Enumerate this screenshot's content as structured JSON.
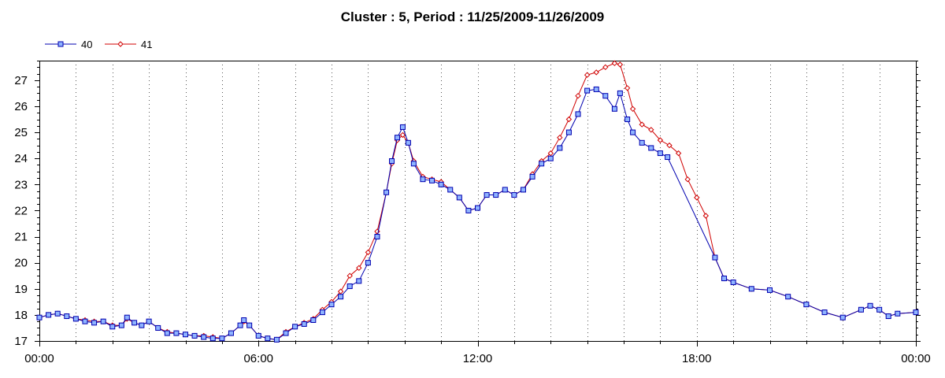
{
  "chart_data": {
    "type": "line",
    "title": "Cluster : 5, Period : 11/25/2009-11/26/2009",
    "xlabel": "",
    "ylabel": "",
    "x_unit": "hours since 00:00",
    "xlim": [
      0,
      24
    ],
    "ylim": [
      17,
      27.75
    ],
    "x_ticks": [
      "00:00",
      "06:00",
      "12:00",
      "18:00",
      "00:00"
    ],
    "y_ticks": [
      "17",
      "18",
      "19",
      "20",
      "21",
      "22",
      "23",
      "24",
      "25",
      "26",
      "27"
    ],
    "grid": "dotted vertical every hour",
    "legend_position": "top-left",
    "series": [
      {
        "name": "40",
        "color": "#0000b0",
        "marker_fill": "#8fb4ff",
        "marker": "square",
        "points": [
          [
            0.0,
            17.9
          ],
          [
            0.25,
            18.0
          ],
          [
            0.5,
            18.05
          ],
          [
            0.75,
            17.95
          ],
          [
            1.0,
            17.85
          ],
          [
            1.25,
            17.75
          ],
          [
            1.5,
            17.7
          ],
          [
            1.75,
            17.75
          ],
          [
            2.0,
            17.55
          ],
          [
            2.25,
            17.6
          ],
          [
            2.4,
            17.9
          ],
          [
            2.6,
            17.7
          ],
          [
            2.8,
            17.6
          ],
          [
            3.0,
            17.75
          ],
          [
            3.25,
            17.5
          ],
          [
            3.5,
            17.3
          ],
          [
            3.75,
            17.3
          ],
          [
            4.0,
            17.25
          ],
          [
            4.25,
            17.2
          ],
          [
            4.5,
            17.15
          ],
          [
            4.75,
            17.1
          ],
          [
            5.0,
            17.1
          ],
          [
            5.25,
            17.3
          ],
          [
            5.5,
            17.6
          ],
          [
            5.6,
            17.8
          ],
          [
            5.75,
            17.6
          ],
          [
            6.0,
            17.2
          ],
          [
            6.25,
            17.1
          ],
          [
            6.5,
            17.05
          ],
          [
            6.75,
            17.3
          ],
          [
            7.0,
            17.55
          ],
          [
            7.25,
            17.65
          ],
          [
            7.5,
            17.8
          ],
          [
            7.75,
            18.1
          ],
          [
            8.0,
            18.4
          ],
          [
            8.25,
            18.7
          ],
          [
            8.5,
            19.1
          ],
          [
            8.75,
            19.3
          ],
          [
            9.0,
            20.0
          ],
          [
            9.25,
            21.0
          ],
          [
            9.5,
            22.7
          ],
          [
            9.65,
            23.9
          ],
          [
            9.8,
            24.8
          ],
          [
            9.95,
            25.2
          ],
          [
            10.1,
            24.6
          ],
          [
            10.25,
            23.8
          ],
          [
            10.5,
            23.2
          ],
          [
            10.75,
            23.15
          ],
          [
            11.0,
            23.0
          ],
          [
            11.25,
            22.8
          ],
          [
            11.5,
            22.5
          ],
          [
            11.75,
            22.0
          ],
          [
            12.0,
            22.1
          ],
          [
            12.25,
            22.6
          ],
          [
            12.5,
            22.6
          ],
          [
            12.75,
            22.8
          ],
          [
            13.0,
            22.6
          ],
          [
            13.25,
            22.8
          ],
          [
            13.5,
            23.3
          ],
          [
            13.75,
            23.8
          ],
          [
            14.0,
            24.0
          ],
          [
            14.25,
            24.4
          ],
          [
            14.5,
            25.0
          ],
          [
            14.75,
            25.7
          ],
          [
            15.0,
            26.6
          ],
          [
            15.25,
            26.65
          ],
          [
            15.5,
            26.4
          ],
          [
            15.75,
            25.9
          ],
          [
            15.9,
            26.5
          ],
          [
            16.1,
            25.5
          ],
          [
            16.25,
            25.0
          ],
          [
            16.5,
            24.6
          ],
          [
            16.75,
            24.4
          ],
          [
            17.0,
            24.2
          ],
          [
            17.2,
            24.05
          ],
          [
            18.5,
            20.2
          ],
          [
            18.75,
            19.4
          ],
          [
            19.0,
            19.25
          ],
          [
            19.5,
            19.0
          ],
          [
            20.0,
            18.95
          ],
          [
            20.5,
            18.7
          ],
          [
            21.0,
            18.4
          ],
          [
            21.5,
            18.1
          ],
          [
            22.0,
            17.9
          ],
          [
            22.5,
            18.2
          ],
          [
            22.75,
            18.35
          ],
          [
            23.0,
            18.2
          ],
          [
            23.25,
            17.95
          ],
          [
            23.5,
            18.05
          ],
          [
            24.0,
            18.1
          ]
        ]
      },
      {
        "name": "41",
        "color": "#d00000",
        "marker_fill": "#ffffff",
        "marker": "diamond",
        "points": [
          [
            0.0,
            17.9
          ],
          [
            0.25,
            18.0
          ],
          [
            0.5,
            18.05
          ],
          [
            0.75,
            17.95
          ],
          [
            1.0,
            17.85
          ],
          [
            1.25,
            17.8
          ],
          [
            1.5,
            17.75
          ],
          [
            1.75,
            17.75
          ],
          [
            2.0,
            17.6
          ],
          [
            2.25,
            17.6
          ],
          [
            2.4,
            17.85
          ],
          [
            2.6,
            17.7
          ],
          [
            2.8,
            17.6
          ],
          [
            3.0,
            17.75
          ],
          [
            3.25,
            17.5
          ],
          [
            3.5,
            17.35
          ],
          [
            3.75,
            17.3
          ],
          [
            4.0,
            17.25
          ],
          [
            4.25,
            17.2
          ],
          [
            4.5,
            17.2
          ],
          [
            4.75,
            17.15
          ],
          [
            5.0,
            17.1
          ],
          [
            5.25,
            17.3
          ],
          [
            5.5,
            17.6
          ],
          [
            5.6,
            17.75
          ],
          [
            5.75,
            17.6
          ],
          [
            6.0,
            17.2
          ],
          [
            6.25,
            17.1
          ],
          [
            6.5,
            17.05
          ],
          [
            6.75,
            17.35
          ],
          [
            7.0,
            17.55
          ],
          [
            7.25,
            17.7
          ],
          [
            7.5,
            17.85
          ],
          [
            7.75,
            18.2
          ],
          [
            8.0,
            18.5
          ],
          [
            8.25,
            18.9
          ],
          [
            8.5,
            19.5
          ],
          [
            8.75,
            19.8
          ],
          [
            9.0,
            20.4
          ],
          [
            9.25,
            21.2
          ],
          [
            9.5,
            22.7
          ],
          [
            9.65,
            23.8
          ],
          [
            9.8,
            24.7
          ],
          [
            9.95,
            24.9
          ],
          [
            10.1,
            24.6
          ],
          [
            10.25,
            23.9
          ],
          [
            10.5,
            23.3
          ],
          [
            10.75,
            23.2
          ],
          [
            11.0,
            23.1
          ],
          [
            11.25,
            22.8
          ],
          [
            11.5,
            22.5
          ],
          [
            11.75,
            22.0
          ],
          [
            12.0,
            22.1
          ],
          [
            12.25,
            22.6
          ],
          [
            12.5,
            22.6
          ],
          [
            12.75,
            22.8
          ],
          [
            13.0,
            22.6
          ],
          [
            13.25,
            22.8
          ],
          [
            13.5,
            23.4
          ],
          [
            13.75,
            23.9
          ],
          [
            14.0,
            24.2
          ],
          [
            14.25,
            24.8
          ],
          [
            14.5,
            25.5
          ],
          [
            14.75,
            26.4
          ],
          [
            15.0,
            27.2
          ],
          [
            15.25,
            27.3
          ],
          [
            15.5,
            27.5
          ],
          [
            15.75,
            27.65
          ],
          [
            15.9,
            27.6
          ],
          [
            16.1,
            26.7
          ],
          [
            16.25,
            25.9
          ],
          [
            16.5,
            25.3
          ],
          [
            16.75,
            25.1
          ],
          [
            17.0,
            24.7
          ],
          [
            17.25,
            24.5
          ],
          [
            17.5,
            24.2
          ],
          [
            17.75,
            23.2
          ],
          [
            18.0,
            22.5
          ],
          [
            18.25,
            21.8
          ],
          [
            18.5,
            20.2
          ],
          [
            18.75,
            19.4
          ],
          [
            19.0,
            19.25
          ],
          [
            19.5,
            19.0
          ],
          [
            20.0,
            18.95
          ],
          [
            20.5,
            18.7
          ],
          [
            21.0,
            18.4
          ],
          [
            21.5,
            18.1
          ],
          [
            22.0,
            17.9
          ],
          [
            22.5,
            18.2
          ],
          [
            22.75,
            18.35
          ],
          [
            23.0,
            18.2
          ],
          [
            23.25,
            17.95
          ],
          [
            23.5,
            18.05
          ],
          [
            24.0,
            18.1
          ]
        ]
      }
    ]
  }
}
